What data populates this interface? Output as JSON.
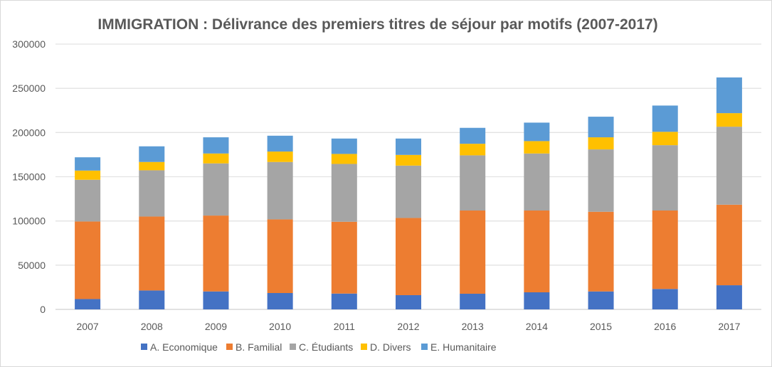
{
  "chart_data": {
    "type": "bar",
    "stacked": true,
    "title": "IMMIGRATION : Délivrance des premiers titres de séjour par motifs (2007-2017)",
    "xlabel": "",
    "ylabel": "",
    "ylim": [
      0,
      300000
    ],
    "yticks": [
      "0",
      "50000",
      "100000",
      "150000",
      "200000",
      "250000",
      "300000"
    ],
    "grid": true,
    "legend": "bottom",
    "categories": [
      "2007",
      "2008",
      "2009",
      "2010",
      "2011",
      "2012",
      "2013",
      "2014",
      "2015",
      "2016",
      "2017"
    ],
    "series": [
      {
        "name": "A. Economique",
        "color": "#4472C4",
        "values": [
          11700,
          21400,
          20300,
          18500,
          17900,
          16100,
          17700,
          19300,
          20300,
          23100,
          27300
        ]
      },
      {
        "name": "B. Familial",
        "color": "#ED7D31",
        "values": [
          87700,
          83600,
          85800,
          83300,
          81200,
          87300,
          94100,
          92500,
          90100,
          88700,
          91100
        ]
      },
      {
        "name": "C. Étudiants",
        "color": "#A5A5A5",
        "values": [
          47200,
          52300,
          59000,
          64900,
          65400,
          59200,
          62400,
          64500,
          70500,
          73900,
          88200
        ]
      },
      {
        "name": "D. Divers",
        "color": "#FFC000",
        "values": [
          10400,
          9400,
          11200,
          11800,
          11300,
          12100,
          13100,
          14000,
          13700,
          15100,
          15300
        ]
      },
      {
        "name": "E. Humanitaire",
        "color": "#5B9BD5",
        "values": [
          15000,
          17700,
          18300,
          17900,
          17400,
          18500,
          18000,
          20900,
          23300,
          29700,
          40400
        ]
      }
    ]
  }
}
